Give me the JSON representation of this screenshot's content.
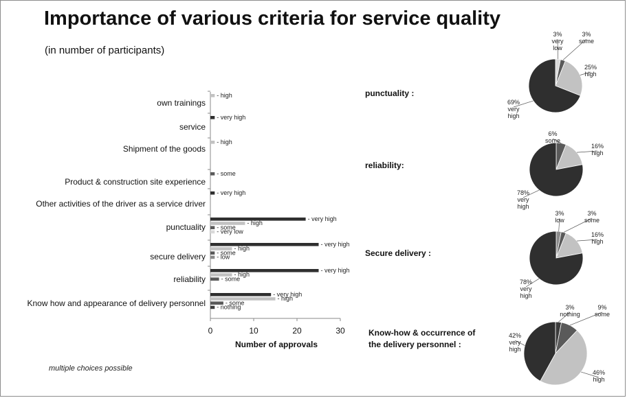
{
  "title": "Importance of various criteria for service quality",
  "subtitle": "(in number of participants)",
  "footnote": "multiple choices possible",
  "colors": {
    "very_high": "#2f2f2f",
    "high": "#c2c2c2",
    "some": "#5a5a5a",
    "low": "#8a8a8a",
    "very_low": "#d9d9d9",
    "nothing": "#3c3c3c"
  },
  "chart_data": [
    {
      "type": "bar",
      "orientation": "horizontal",
      "xlabel": "Number of approvals",
      "xlim": [
        0,
        30
      ],
      "xticks": [
        0,
        10,
        20,
        30
      ],
      "categories": [
        {
          "name": "own trainings",
          "bars": [
            {
              "label": "- high",
              "value": 1,
              "color": "#c2c2c2"
            }
          ]
        },
        {
          "name": "service",
          "bars": [
            {
              "label": "- very high",
              "value": 1,
              "color": "#2f2f2f"
            }
          ]
        },
        {
          "name": "Shipment of the goods",
          "bars": [
            {
              "label": "- high",
              "value": 1,
              "color": "#c2c2c2"
            }
          ]
        },
        {
          "name": "Product & construction site experience",
          "bars": [
            {
              "label": "- some",
              "value": 1,
              "color": "#5a5a5a"
            }
          ]
        },
        {
          "name": "Other activities of the driver as a service driver",
          "bars": [
            {
              "label": "- very high",
              "value": 1,
              "color": "#2f2f2f"
            }
          ]
        },
        {
          "name": "punctuality",
          "bars": [
            {
              "label": "- very high",
              "value": 22,
              "color": "#2f2f2f"
            },
            {
              "label": "- high",
              "value": 8,
              "color": "#c2c2c2"
            },
            {
              "label": "- some",
              "value": 1,
              "color": "#5a5a5a"
            },
            {
              "label": "- very  low",
              "value": 1,
              "color": "#d9d9d9"
            }
          ]
        },
        {
          "name": "secure delivery",
          "bars": [
            {
              "label": "- very high",
              "value": 25,
              "color": "#2f2f2f"
            },
            {
              "label": "- high",
              "value": 5,
              "color": "#c2c2c2"
            },
            {
              "label": "- some",
              "value": 1,
              "color": "#5a5a5a"
            },
            {
              "label": "- low",
              "value": 1,
              "color": "#8a8a8a"
            }
          ]
        },
        {
          "name": "reliability",
          "bars": [
            {
              "label": "- very high",
              "value": 25,
              "color": "#2f2f2f"
            },
            {
              "label": "- high",
              "value": 5,
              "color": "#c2c2c2"
            },
            {
              "label": "- some",
              "value": 2,
              "color": "#5a5a5a"
            }
          ]
        },
        {
          "name": "Know how and appearance of delivery personnel",
          "bars": [
            {
              "label": "- very high",
              "value": 14,
              "color": "#2f2f2f"
            },
            {
              "label": "- high",
              "value": 15,
              "color": "#c2c2c2"
            },
            {
              "label": "- some",
              "value": 3,
              "color": "#5a5a5a"
            },
            {
              "label": "- nothing",
              "value": 1,
              "color": "#3c3c3c"
            }
          ]
        }
      ]
    },
    {
      "type": "pie",
      "title": "punctuality :",
      "slices": [
        {
          "value": 3,
          "label": [
            "3%",
            "very",
            "low"
          ],
          "color": "#d9d9d9"
        },
        {
          "value": 3,
          "label": [
            "3%",
            "some"
          ],
          "color": "#5a5a5a"
        },
        {
          "value": 25,
          "label": [
            "25%",
            "high"
          ],
          "color": "#c2c2c2"
        },
        {
          "value": 69,
          "label": [
            "69%",
            "very",
            "high"
          ],
          "color": "#2f2f2f"
        }
      ]
    },
    {
      "type": "pie",
      "title": "reliability:",
      "slices": [
        {
          "value": 6,
          "label": [
            "6%",
            "some"
          ],
          "color": "#5a5a5a"
        },
        {
          "value": 16,
          "label": [
            "16%",
            "high"
          ],
          "color": "#c2c2c2"
        },
        {
          "value": 78,
          "label": [
            "78%",
            "very",
            "high"
          ],
          "color": "#2f2f2f"
        }
      ]
    },
    {
      "type": "pie",
      "title": "Secure delivery :",
      "slices": [
        {
          "value": 3,
          "label": [
            "3%",
            "low"
          ],
          "color": "#8a8a8a"
        },
        {
          "value": 3,
          "label": [
            "3%",
            "some"
          ],
          "color": "#5a5a5a"
        },
        {
          "value": 16,
          "label": [
            "16%",
            "high"
          ],
          "color": "#c2c2c2"
        },
        {
          "value": 78,
          "label": [
            "78%",
            "very",
            "high"
          ],
          "color": "#2f2f2f"
        }
      ]
    },
    {
      "type": "pie",
      "title": "Know-how & occurrence of the delivery personnel :",
      "slices": [
        {
          "value": 3,
          "label": [
            "3%",
            "nothing"
          ],
          "color": "#3c3c3c"
        },
        {
          "value": 9,
          "label": [
            "9%",
            "some"
          ],
          "color": "#5a5a5a"
        },
        {
          "value": 46,
          "label": [
            "46%",
            "high"
          ],
          "color": "#c2c2c2"
        },
        {
          "value": 42,
          "label": [
            "42%",
            "very",
            "high"
          ],
          "color": "#2f2f2f"
        }
      ]
    }
  ]
}
